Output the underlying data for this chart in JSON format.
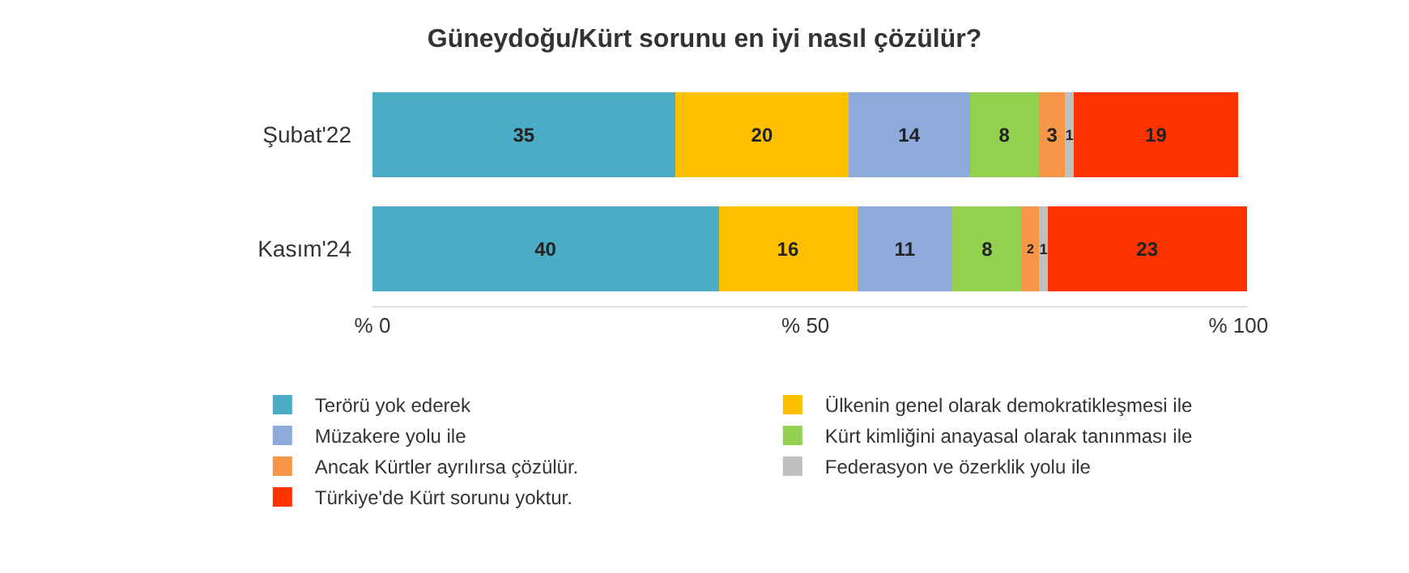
{
  "chart_data": {
    "type": "bar",
    "orientation": "horizontal",
    "stacked": true,
    "title": "Güneydoğu/Kürt sorunu en iyi nasıl çözülür?",
    "categories": [
      "Şubat'22",
      "Kasım'24"
    ],
    "series": [
      {
        "name": "Terörü yok ederek",
        "color": "#4bacc6",
        "values": [
          35,
          40
        ]
      },
      {
        "name": "Ülkenin genel olarak demokratikleşmesi ile",
        "color": "#ffc000",
        "values": [
          20,
          16
        ]
      },
      {
        "name": "Müzakere yolu ile",
        "color": "#8ea9db",
        "values": [
          14,
          11
        ]
      },
      {
        "name": "Kürt kimliğini anayasal olarak tanınması ile",
        "color": "#92d050",
        "values": [
          8,
          8
        ]
      },
      {
        "name": "Ancak Kürtler ayrılırsa çözülür.",
        "color": "#f79646",
        "values": [
          3,
          2
        ]
      },
      {
        "name": "Federasyon ve özerklik yolu ile",
        "color": "#bfbfbf",
        "values": [
          1,
          1
        ]
      },
      {
        "name": "Türkiye'de Kürt sorunu yoktur.",
        "color": "#ff3300",
        "values": [
          19,
          23
        ]
      }
    ],
    "xlim": [
      0,
      101
    ],
    "xticks": [
      {
        "value": 0,
        "label": "% 0"
      },
      {
        "value": 50,
        "label": "% 50"
      },
      {
        "value": 100,
        "label": "% 100"
      }
    ],
    "data_labels": true,
    "legend": "bottom"
  }
}
